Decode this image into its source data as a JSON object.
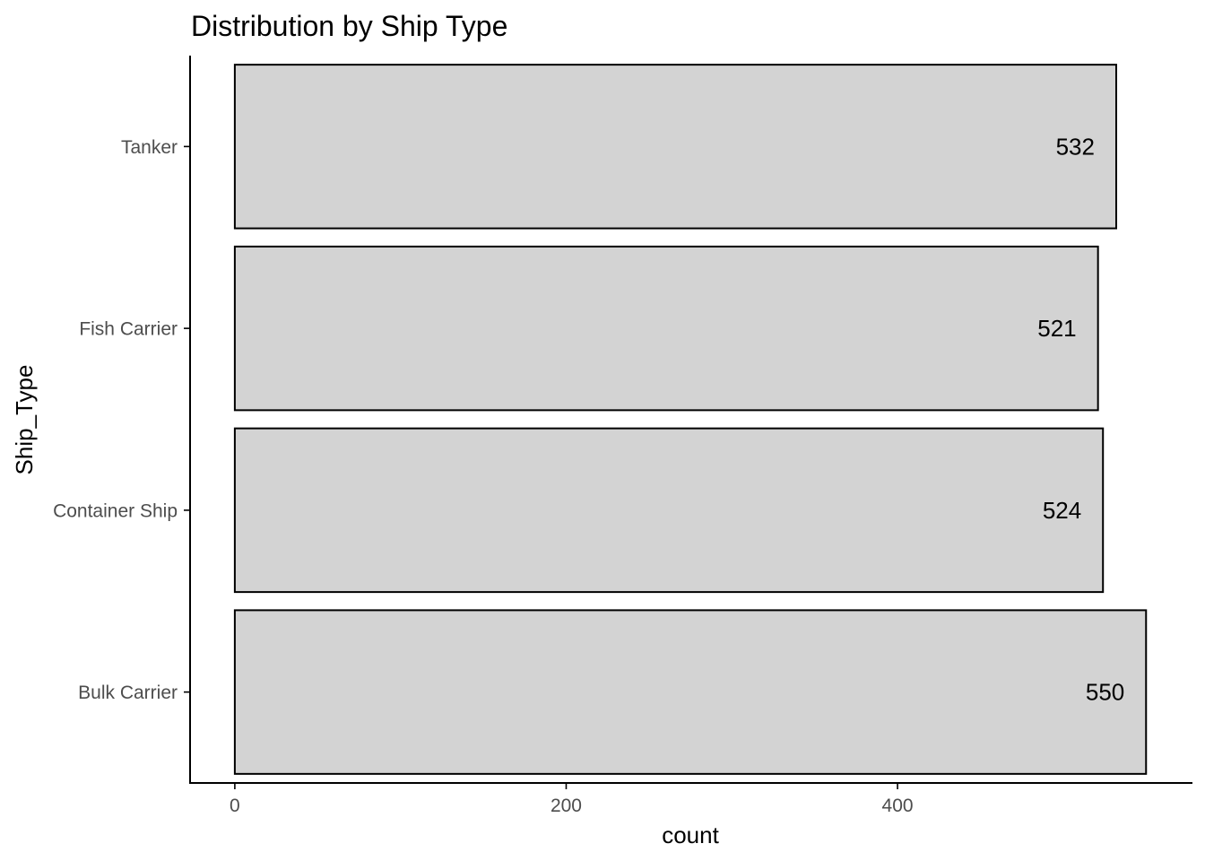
{
  "chart_data": {
    "type": "bar",
    "orientation": "horizontal",
    "title": "Distribution by Ship Type",
    "xlabel": "count",
    "ylabel": "Ship_Type",
    "categories": [
      "Bulk Carrier",
      "Container Ship",
      "Fish Carrier",
      "Tanker"
    ],
    "values": [
      550,
      524,
      521,
      532
    ],
    "value_labels": [
      "550",
      "524",
      "521",
      "532"
    ],
    "x_ticks": [
      0,
      200,
      400
    ],
    "x_tick_labels": [
      "0",
      "200",
      "400"
    ],
    "xlim": [
      -27,
      578
    ],
    "grid": false,
    "legend": "none",
    "colors": {
      "bar_fill": "#d3d3d3",
      "bar_stroke": "#000000",
      "tick_text": "#4d4d4d"
    }
  }
}
